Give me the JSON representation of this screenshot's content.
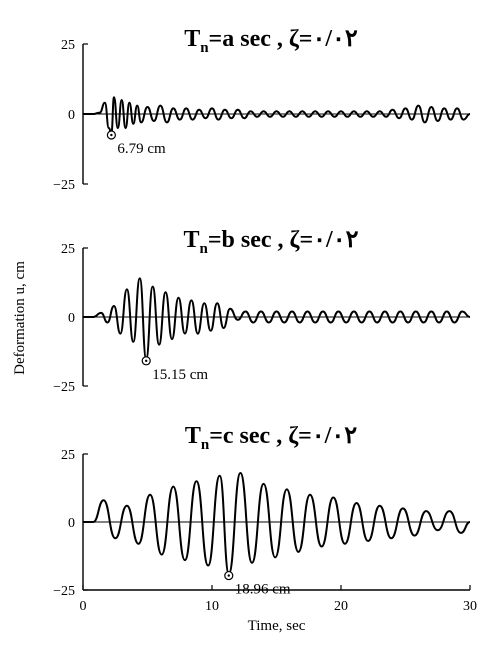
{
  "chart_data": [
    {
      "type": "line",
      "title_prefix": "T",
      "title_sub": "n",
      "title_suffix": "=a sec , ζ=٠/٠٢",
      "xlim": [
        0,
        30
      ],
      "ylim": [
        -25,
        25
      ],
      "yticks": [
        "25",
        "0",
        "−25"
      ],
      "x_ticks_shown": false,
      "peak": {
        "x": 2.2,
        "y": -6.79,
        "label": "6.79 cm"
      },
      "series": [
        {
          "x": [
            0,
            0.8,
            1.3,
            1.7,
            2.0,
            2.2,
            2.4,
            2.7,
            3.0,
            3.3,
            3.6,
            3.9,
            4.2,
            4.5,
            5.0,
            5.5,
            6.0,
            6.5,
            7.0,
            7.5,
            8.0,
            8.5,
            9.0,
            9.5,
            10.0,
            10.5,
            11.0,
            11.5,
            12.0,
            12.5,
            13.0,
            13.5,
            14.0,
            14.5,
            15.0,
            15.5,
            16.0,
            16.5,
            17.0,
            17.5,
            18.0,
            18.5,
            19.0,
            19.5,
            20.0,
            20.5,
            21.0,
            21.5,
            22.0,
            22.5,
            23.0,
            23.5,
            24.0,
            24.5,
            25.0,
            25.5,
            26.0,
            26.5,
            27.0,
            27.5,
            28.0,
            28.5,
            29.0,
            29.5,
            30.0
          ],
          "y": [
            0,
            0,
            0.5,
            4,
            -5,
            -6.79,
            6,
            -5,
            5,
            -5,
            4,
            -3.5,
            3,
            -3,
            2.5,
            -2.5,
            3,
            -3,
            2,
            -2,
            2,
            -2,
            1.5,
            -1.5,
            2,
            -2,
            1.5,
            -1.5,
            1.5,
            -1.5,
            1,
            -1,
            1,
            -1,
            1,
            -1,
            1,
            -1,
            1,
            -1,
            1,
            -1,
            1,
            -1,
            1,
            -1,
            1,
            -1,
            1,
            -1,
            1,
            -1,
            1.5,
            -1.5,
            2,
            -2,
            3,
            -3,
            2.5,
            -2.5,
            2,
            -2,
            2,
            -2,
            0
          ]
        }
      ]
    },
    {
      "type": "line",
      "title_prefix": "T",
      "title_sub": "n",
      "title_suffix": "=b sec , ζ=٠/٠٢",
      "xlim": [
        0,
        30
      ],
      "ylim": [
        -25,
        25
      ],
      "yticks": [
        "25",
        "0",
        "−25"
      ],
      "x_ticks_shown": false,
      "peak": {
        "x": 4.9,
        "y": -15.15,
        "label": "15.15 cm"
      },
      "series": [
        {
          "x": [
            0,
            0.8,
            1.4,
            1.9,
            2.4,
            2.9,
            3.4,
            3.9,
            4.4,
            4.9,
            5.4,
            5.9,
            6.4,
            6.9,
            7.4,
            7.9,
            8.4,
            8.9,
            9.4,
            9.9,
            10.4,
            10.9,
            11.4,
            12.0,
            12.6,
            13.2,
            13.8,
            14.4,
            15.0,
            15.6,
            16.2,
            16.8,
            17.4,
            18.0,
            18.6,
            19.2,
            19.8,
            20.4,
            21.0,
            21.6,
            22.2,
            22.8,
            23.4,
            24.0,
            24.6,
            25.2,
            25.8,
            26.4,
            27.0,
            27.6,
            28.2,
            28.8,
            29.4,
            30.0
          ],
          "y": [
            0,
            0,
            1.5,
            -2,
            4,
            -6,
            10,
            -9,
            14,
            -15.15,
            11,
            -10,
            9,
            -8,
            7,
            -6,
            6,
            -6,
            5,
            -5,
            5,
            -4,
            3,
            -1,
            2,
            -2,
            2,
            -2,
            2,
            -2,
            2,
            -2,
            2,
            -2,
            2,
            -2,
            2,
            -2,
            2,
            -2,
            2,
            -2,
            2,
            -2,
            2,
            -2,
            2,
            -2,
            2,
            -2,
            2,
            -2,
            2,
            0
          ]
        }
      ]
    },
    {
      "type": "line",
      "title_prefix": "T",
      "title_sub": "n",
      "title_suffix": "=c sec , ζ=٠/٠٢",
      "xlim": [
        0,
        30
      ],
      "ylim": [
        -25,
        25
      ],
      "yticks": [
        "25",
        "0",
        "−25"
      ],
      "xticks": [
        "0",
        "10",
        "20",
        "30"
      ],
      "x_ticks_shown": true,
      "xlabel": "Time, sec",
      "peak": {
        "x": 11.3,
        "y": -18.96,
        "label": "18.96 cm"
      },
      "series": [
        {
          "x": [
            0,
            0.8,
            1.6,
            2.5,
            3.4,
            4.3,
            5.2,
            6.1,
            7.0,
            7.9,
            8.8,
            9.7,
            10.6,
            11.3,
            12.2,
            13.1,
            14.0,
            14.9,
            15.8,
            16.7,
            17.6,
            18.5,
            19.4,
            20.3,
            21.2,
            22.1,
            23.0,
            23.9,
            24.8,
            25.7,
            26.6,
            27.5,
            28.4,
            29.3,
            30.0
          ],
          "y": [
            0,
            0,
            8,
            -6,
            6,
            -8,
            10,
            -12,
            13,
            -14,
            15,
            -16,
            17,
            -18.96,
            18,
            -15,
            14,
            -13,
            12,
            -11,
            10,
            -9,
            9,
            -8,
            7,
            -7,
            6,
            -6,
            5,
            -5,
            4,
            -3,
            4,
            -4,
            0
          ]
        }
      ]
    }
  ],
  "shared_ylabel": "Deformation u, cm"
}
